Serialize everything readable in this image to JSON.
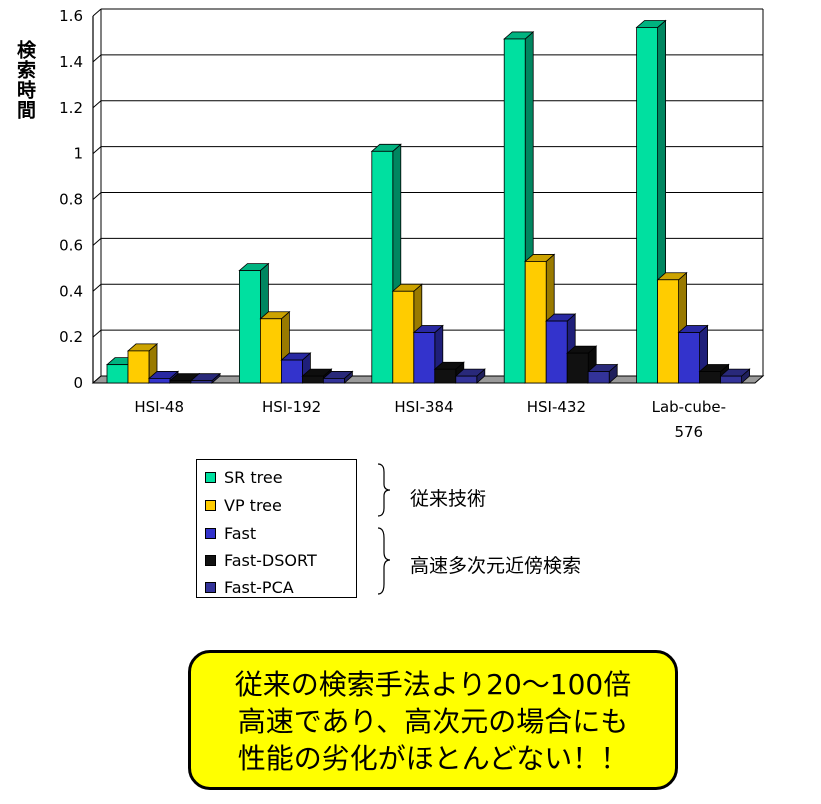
{
  "chart_data": {
    "type": "bar",
    "ylabel": "検索時間",
    "xlabel": "",
    "ylim": [
      0,
      1.6
    ],
    "yticks": [
      "0",
      "0.2",
      "0.4",
      "0.6",
      "0.8",
      "1",
      "1.2",
      "1.4",
      "1.6"
    ],
    "categories": [
      "HSI-48",
      "HSI-192",
      "HSI-384",
      "HSI-432",
      "Lab-cube-576"
    ],
    "category_labels": [
      [
        "HSI-48"
      ],
      [
        "HSI-192"
      ],
      [
        "HSI-384"
      ],
      [
        "HSI-432"
      ],
      [
        "Lab-cube-",
        "576"
      ]
    ],
    "series": [
      {
        "name": "SR tree",
        "color": "#00E0A0",
        "values": [
          0.08,
          0.49,
          1.01,
          1.5,
          1.55
        ]
      },
      {
        "name": "VP tree",
        "color": "#FFCC00",
        "values": [
          0.14,
          0.28,
          0.4,
          0.53,
          0.45
        ]
      },
      {
        "name": "Fast",
        "color": "#3333CC",
        "values": [
          0.02,
          0.1,
          0.22,
          0.27,
          0.22
        ]
      },
      {
        "name": "Fast-DSORT",
        "color": "#111111",
        "values": [
          0.01,
          0.03,
          0.06,
          0.13,
          0.05
        ]
      },
      {
        "name": "Fast-PCA",
        "color": "#333399",
        "values": [
          0.01,
          0.02,
          0.03,
          0.05,
          0.03
        ]
      }
    ],
    "grid": true,
    "legend_position": "bottom-left"
  },
  "legend_groups": [
    {
      "label": "従来技術"
    },
    {
      "label": "高速多次元近傍検索"
    }
  ],
  "callout": {
    "lines": [
      "従来の検索手法より20～100倍",
      "高速であり、高次元の場合にも",
      "性能の劣化がほとんどない！！"
    ]
  }
}
